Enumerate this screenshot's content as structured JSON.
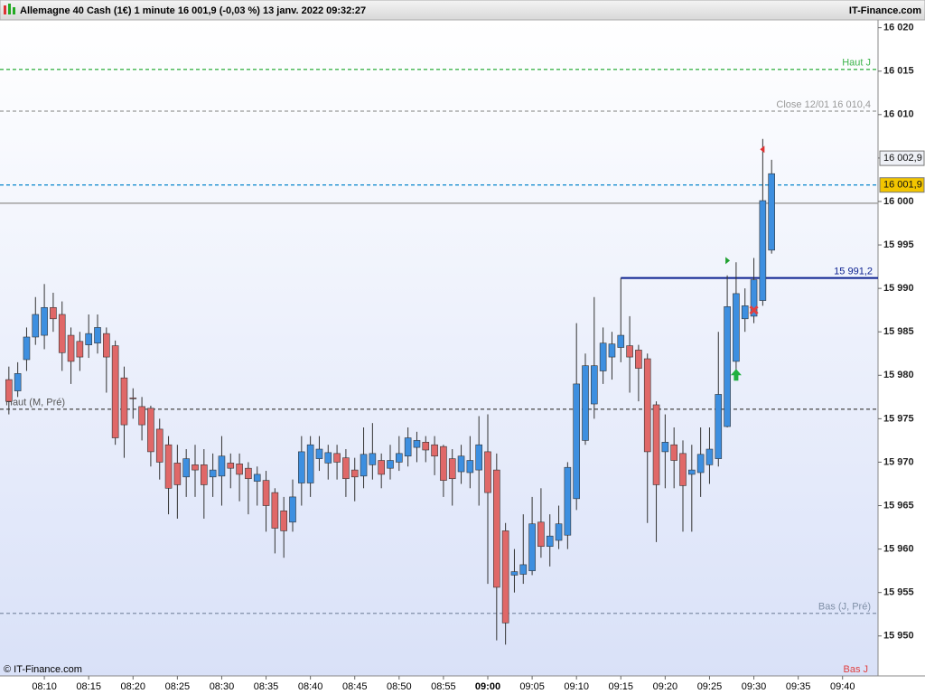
{
  "chart_data": {
    "type": "candlestick",
    "title": "Allemagne 40 Cash (1€) 1 minute 16 001,9 (-0,03 %) 13 janv. 2022 09:32:27",
    "brand": "IT-Finance.com",
    "copyright": "© IT-Finance.com",
    "xlim": [
      "08:05",
      "09:44"
    ],
    "ylim": [
      15945.4,
      16020.9
    ],
    "xticks": [
      "08:10",
      "08:15",
      "08:20",
      "08:25",
      "08:30",
      "08:35",
      "08:40",
      "08:45",
      "08:50",
      "08:55",
      "09:00",
      "09:05",
      "09:10",
      "09:15",
      "09:20",
      "09:25",
      "09:30",
      "09:35",
      "09:40"
    ],
    "yticks": [
      {
        "value": 15950,
        "label": "15 950"
      },
      {
        "value": 15955,
        "label": "15 955"
      },
      {
        "value": 15960,
        "label": "15 960"
      },
      {
        "value": 15965,
        "label": "15 965"
      },
      {
        "value": 15970,
        "label": "15 970"
      },
      {
        "value": 15975,
        "label": "15 975"
      },
      {
        "value": 15980,
        "label": "15 980"
      },
      {
        "value": 15985,
        "label": "15 985"
      },
      {
        "value": 15990,
        "label": "15 990"
      },
      {
        "value": 15995,
        "label": "15 995"
      },
      {
        "value": 16000,
        "label": "16 000"
      },
      {
        "value": 16005,
        "label": "16 005"
      },
      {
        "value": 16010,
        "label": "16 010"
      },
      {
        "value": 16015,
        "label": "16 015"
      },
      {
        "value": 16020,
        "label": "16 020"
      }
    ],
    "up_color": "#3d8fe0",
    "down_color": "#e06868",
    "candles": {
      "x": [
        "08:06",
        "08:07",
        "08:08",
        "08:09",
        "08:10",
        "08:11",
        "08:12",
        "08:13",
        "08:14",
        "08:15",
        "08:16",
        "08:17",
        "08:18",
        "08:19",
        "08:20",
        "08:21",
        "08:22",
        "08:23",
        "08:24",
        "08:25",
        "08:26",
        "08:27",
        "08:28",
        "08:29",
        "08:30",
        "08:31",
        "08:32",
        "08:33",
        "08:34",
        "08:35",
        "08:36",
        "08:37",
        "08:38",
        "08:39",
        "08:40",
        "08:41",
        "08:42",
        "08:43",
        "08:44",
        "08:45",
        "08:46",
        "08:47",
        "08:48",
        "08:49",
        "08:50",
        "08:51",
        "08:52",
        "08:53",
        "08:54",
        "08:55",
        "08:56",
        "08:57",
        "08:58",
        "08:59",
        "09:00",
        "09:01",
        "09:02",
        "09:03",
        "09:04",
        "09:05",
        "09:06",
        "09:07",
        "09:08",
        "09:09",
        "09:10",
        "09:11",
        "09:12",
        "09:13",
        "09:14",
        "09:15",
        "09:16",
        "09:17",
        "09:18",
        "09:19",
        "09:20",
        "09:21",
        "09:22",
        "09:23",
        "09:24",
        "09:25",
        "09:26",
        "09:27",
        "09:28",
        "09:29",
        "09:30",
        "09:31",
        "09:32"
      ],
      "open": [
        15979.5,
        15978.2,
        15981.8,
        15984.4,
        15984.6,
        15987.8,
        15987,
        15984.6,
        15983.9,
        15983.5,
        15983.7,
        15984.8,
        15983.4,
        15979.7,
        15977.4,
        15976.4,
        15976.2,
        15973.8,
        15972,
        15969.9,
        15968.3,
        15969.7,
        15969.7,
        15968.3,
        15968.4,
        15969.9,
        15969.8,
        15969.3,
        15967.8,
        15967.9,
        15966.5,
        15964.4,
        15963.1,
        15967.6,
        15967.6,
        15970.4,
        15969.9,
        15971,
        15970.5,
        15969.1,
        15968.4,
        15969.7,
        15970.2,
        15969.3,
        15970,
        15970.7,
        15971.7,
        15972.3,
        15972,
        15971.8,
        15970.4,
        15968.9,
        15968.8,
        15969.1,
        15971.2,
        15969.1,
        15962.1,
        15957,
        15957.1,
        15957.5,
        15963.1,
        15960.3,
        15961,
        15961.6,
        15965.8,
        15972.5,
        15976.7,
        15980.5,
        15982.1,
        15983.2,
        15983.4,
        15982.9,
        15981.9,
        15976.6,
        15971.2,
        15972,
        15971,
        15968.6,
        15968.8,
        15969.7,
        15970.4,
        15974.1,
        15981.6,
        15986.5,
        15986.8,
        15988.6,
        15994.4
      ],
      "high": [
        15981,
        15981.5,
        15985.5,
        15989,
        15990.5,
        15989.5,
        15988.5,
        15985.5,
        15985,
        15987,
        15987,
        15985.5,
        15984,
        15981,
        15978.5,
        15977.5,
        15976.5,
        15975,
        15973,
        15972,
        15971.5,
        15972,
        15971.5,
        15971,
        15973,
        15971,
        15971,
        15970,
        15969.5,
        15969,
        15967,
        15966,
        15968,
        15973,
        15973,
        15973,
        15972,
        15972,
        15971.5,
        15970.5,
        15974,
        15974.5,
        15971,
        15972,
        15973,
        15974,
        15973.5,
        15973,
        15973,
        15972,
        15971.5,
        15972,
        15973,
        15975.3,
        15975.5,
        15971,
        15963,
        15960,
        15964,
        15966,
        15967,
        15964,
        15965,
        15970,
        15986,
        15982.5,
        15989,
        15985.5,
        15985,
        15991.2,
        15986.8,
        15983.5,
        15982.5,
        15977,
        15975.5,
        15974,
        15972.5,
        15972,
        15974,
        15974,
        15985,
        15991.5,
        15993,
        15990,
        15993.5,
        16007.2,
        16004.8
      ],
      "low": [
        15975.5,
        15977.5,
        15980.5,
        15983.5,
        15983,
        15985,
        15980.5,
        15979,
        15980.5,
        15982,
        15982.5,
        15978,
        15972,
        15970.5,
        15975,
        15972.5,
        15969.5,
        15968,
        15964,
        15963.5,
        15966,
        15966,
        15963.5,
        15966,
        15965,
        15967,
        15965.5,
        15964,
        15965,
        15962,
        15959.5,
        15959,
        15962,
        15965,
        15966,
        15969,
        15968,
        15968,
        15966,
        15965.5,
        15967,
        15968,
        15967,
        15968,
        15969,
        15969.5,
        15970,
        15970,
        15968.5,
        15966,
        15965,
        15967.5,
        15967,
        15965,
        15956,
        15949.5,
        15949,
        15955,
        15956,
        15957,
        15959,
        15958,
        15960,
        15960,
        15964.5,
        15972,
        15975,
        15979,
        15979.5,
        15981.5,
        15978,
        15977,
        15963,
        15960.8,
        15967,
        15967,
        15962,
        15962,
        15966,
        15967.5,
        15969.5,
        15974,
        15979.5,
        15985,
        15986,
        15988,
        15994
      ],
      "close": [
        15977,
        15980.2,
        15984.4,
        15987,
        15987.8,
        15986.5,
        15982.6,
        15981.6,
        15982.1,
        15984.8,
        15985.5,
        15982.1,
        15972.8,
        15974.3,
        15977.3,
        15974.3,
        15971.2,
        15970,
        15967,
        15967.4,
        15970.4,
        15969.1,
        15967.4,
        15969.1,
        15970.7,
        15969.3,
        15968.6,
        15968.1,
        15968.6,
        15965,
        15962.4,
        15962.1,
        15966,
        15971.2,
        15972,
        15971.5,
        15971.1,
        15970,
        15968.1,
        15968.3,
        15970.9,
        15971,
        15968.6,
        15970.2,
        15971,
        15972.8,
        15972.5,
        15971.4,
        15970.7,
        15967.9,
        15968.1,
        15970.7,
        15970.2,
        15972,
        15966.5,
        15955.6,
        15951.5,
        15957.4,
        15958.2,
        15962.9,
        15960.3,
        15961.5,
        15962.9,
        15969.4,
        15979,
        15981.1,
        15981.1,
        15983.7,
        15983.6,
        15984.6,
        15982.1,
        15980.8,
        15971.2,
        15967.4,
        15972.3,
        15970.2,
        15967.3,
        15969.1,
        15970.9,
        15971.5,
        15977.8,
        15987.9,
        15989.4,
        15988,
        15991,
        16000.1,
        16003.2
      ]
    },
    "levels": [
      {
        "value": 16015.2,
        "label": "Haut J",
        "color": "#3cb44b",
        "style": "dash"
      },
      {
        "value": 16010.4,
        "label": "Close 12/01 16 010,4",
        "color": "#999999",
        "style": "dash"
      },
      {
        "value": 16001.9,
        "color": "#1a8fd0",
        "style": "dash"
      },
      {
        "value": 15999.8,
        "color": "#a0a0a0",
        "style": "solid"
      },
      {
        "value": 15976.1,
        "label": "Haut (M, Pré)",
        "color": "#555555",
        "style": "dash"
      },
      {
        "value": 15952.6,
        "label": "Bas (J, Pré)",
        "color": "#8090a8",
        "style": "dash"
      }
    ],
    "bottom_label": "Bas J",
    "segment": {
      "x": "09:15",
      "value": 15991.2,
      "label": "15 991,2",
      "color": "#0a1f8f"
    },
    "price_boxes": [
      {
        "value": 16002.9,
        "label": "16 002,9",
        "color": "#eef0f6"
      },
      {
        "value": 16001.9,
        "label": "16 001,9",
        "color": "#f2c500"
      }
    ],
    "signals": [
      {
        "x": "09:31",
        "value": 16006,
        "kind": "tri-left",
        "color": "#e03030"
      },
      {
        "x": "09:27",
        "value": 15993.2,
        "kind": "tri-right",
        "color": "#20a030"
      },
      {
        "x": "09:28",
        "value": 15980,
        "kind": "arrow-up",
        "color": "#20b040"
      },
      {
        "x": "09:30",
        "value": 15987.5,
        "kind": "cross",
        "color": "#e04040"
      }
    ]
  }
}
